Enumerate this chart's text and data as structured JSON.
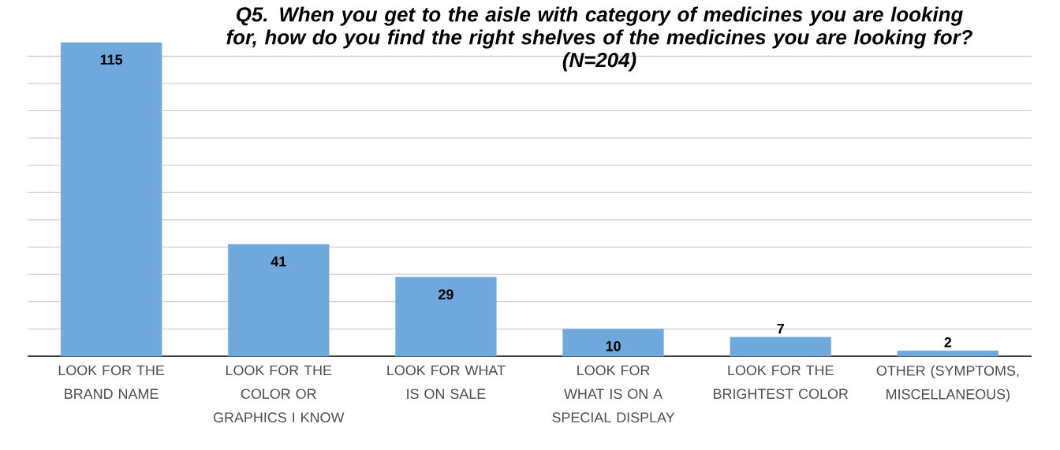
{
  "chart_data": {
    "type": "bar",
    "title": "Q5.  When you get to the aisle with category of medicines you are looking for, how do you find the right shelves of the medicines you are looking for?",
    "subtitle": "(N=204)",
    "categories": [
      "LOOK FOR THE BRAND NAME",
      "LOOK FOR THE COLOR OR GRAPHICS I KNOW",
      "LOOK FOR WHAT IS ON SALE",
      "LOOK FOR WHAT IS ON A SPECIAL DISPLAY",
      "LOOK FOR THE BRIGHTEST COLOR",
      "OTHER  (SYMPTOMS, MISCELLANEOUS)"
    ],
    "values": [
      115,
      41,
      29,
      10,
      7,
      2
    ],
    "color": "#6fa8dc",
    "tick_labels": "x",
    "grid": "y",
    "data_labels": true
  }
}
